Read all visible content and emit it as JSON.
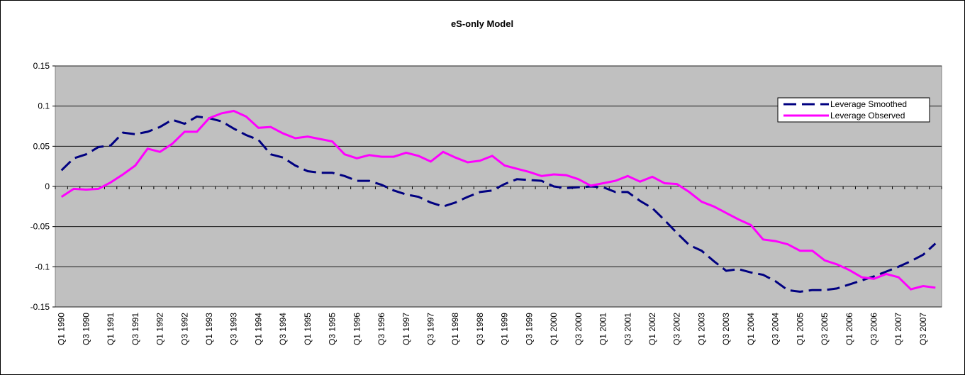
{
  "chart_data": {
    "type": "line",
    "title": "eS-only Model",
    "categories": [
      "Q1 1990",
      null,
      "Q3 1990",
      null,
      "Q1 1991",
      null,
      "Q3 1991",
      null,
      "Q1 1992",
      null,
      "Q3 1992",
      null,
      "Q1 1993",
      null,
      "Q3 1993",
      null,
      "Q1 1994",
      null,
      "Q3 1994",
      null,
      "Q1 1995",
      null,
      "Q3 1995",
      null,
      "Q1 1996",
      null,
      "Q3 1996",
      null,
      "Q1 1997",
      null,
      "Q3 1997",
      null,
      "Q1 1998",
      null,
      "Q3 1998",
      null,
      "Q1 1999",
      null,
      "Q3 1999",
      null,
      "Q1 2000",
      null,
      "Q3 2000",
      null,
      "Q1 2001",
      null,
      "Q3 2001",
      null,
      "Q1 2002",
      null,
      "Q3 2002",
      null,
      "Q1 2003",
      null,
      "Q3 2003",
      null,
      "Q1 2004",
      null,
      "Q3 2004",
      null,
      "Q1 2005",
      null,
      "Q3 2005",
      null,
      "Q1 2006",
      null,
      "Q3 2006",
      null,
      "Q1 2007",
      null,
      "Q3 2007",
      null
    ],
    "series": [
      {
        "name": "Leverage Smoothed",
        "color": "#000080",
        "line_style": "dashed",
        "values": [
          0.02,
          0.035,
          0.04,
          0.049,
          0.051,
          0.067,
          0.065,
          0.068,
          0.074,
          0.083,
          0.078,
          0.087,
          0.085,
          0.081,
          0.072,
          0.064,
          0.058,
          0.04,
          0.036,
          0.026,
          0.019,
          0.017,
          0.017,
          0.013,
          0.007,
          0.007,
          0.002,
          -0.005,
          -0.01,
          -0.013,
          -0.02,
          -0.025,
          -0.02,
          -0.013,
          -0.007,
          -0.005,
          0.003,
          0.009,
          0.008,
          0.007,
          0.0,
          -0.002,
          -0.001,
          0.0,
          -0.001,
          -0.007,
          -0.007,
          -0.018,
          -0.027,
          -0.042,
          -0.058,
          -0.073,
          -0.08,
          -0.093,
          -0.105,
          -0.103,
          -0.107,
          -0.11,
          -0.118,
          -0.129,
          -0.131,
          -0.129,
          -0.129,
          -0.127,
          -0.122,
          -0.117,
          -0.112,
          -0.106,
          -0.1,
          -0.093,
          -0.085,
          -0.071
        ]
      },
      {
        "name": "Leverage Observed",
        "color": "#ff00ff",
        "line_style": "solid",
        "values": [
          -0.013,
          -0.003,
          -0.004,
          -0.003,
          0.005,
          0.015,
          0.026,
          0.047,
          0.043,
          0.053,
          0.068,
          0.068,
          0.085,
          0.091,
          0.094,
          0.087,
          0.073,
          0.074,
          0.066,
          0.06,
          0.062,
          0.059,
          0.056,
          0.04,
          0.035,
          0.039,
          0.037,
          0.037,
          0.042,
          0.038,
          0.031,
          0.043,
          0.036,
          0.03,
          0.032,
          0.038,
          0.026,
          0.022,
          0.018,
          0.013,
          0.015,
          0.014,
          0.009,
          0.001,
          0.004,
          0.007,
          0.013,
          0.006,
          0.012,
          0.004,
          0.003,
          -0.007,
          -0.019,
          -0.025,
          -0.033,
          -0.041,
          -0.048,
          -0.066,
          -0.068,
          -0.072,
          -0.08,
          -0.08,
          -0.092,
          -0.097,
          -0.104,
          -0.113,
          -0.115,
          -0.109,
          -0.113,
          -0.128,
          -0.124,
          -0.126
        ]
      }
    ],
    "ylim": [
      -0.15,
      0.15
    ],
    "yticks": [
      -0.15,
      -0.1,
      -0.05,
      0,
      0.05,
      0.1,
      0.15
    ],
    "grid": true,
    "legend": "top-right"
  }
}
